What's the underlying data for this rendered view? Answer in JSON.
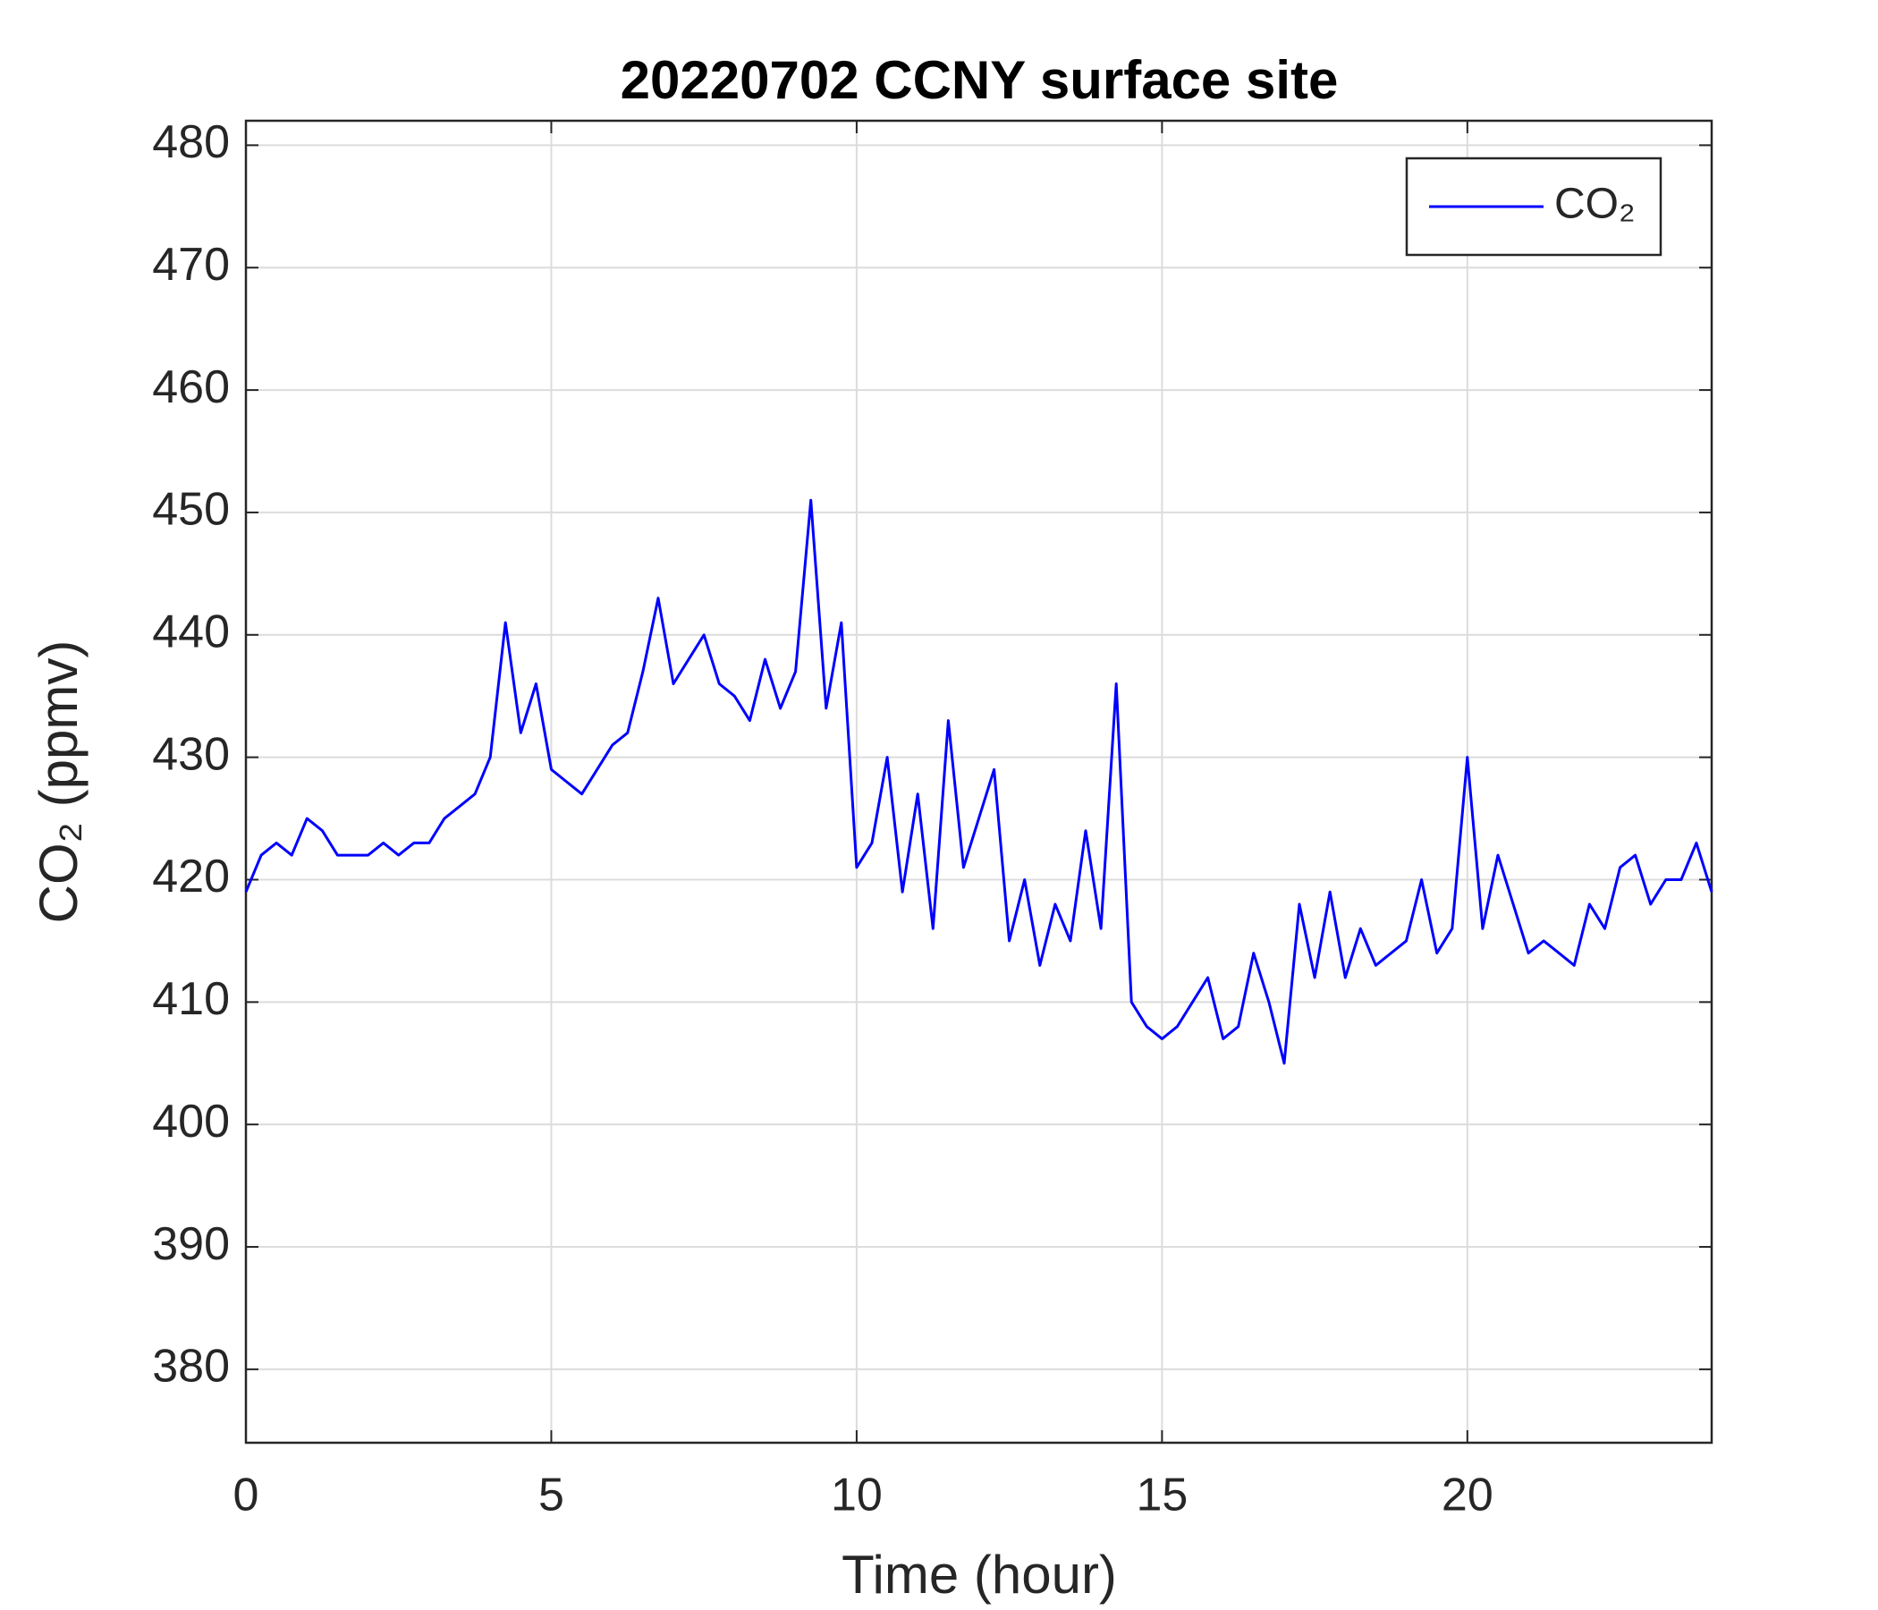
{
  "chart_data": {
    "type": "line",
    "title": "20220702 CCNY surface site",
    "xlabel": "Time (hour)",
    "ylabel": "CO₂ (ppmv)",
    "x": [
      0,
      0.25,
      0.5,
      0.75,
      1,
      1.25,
      1.5,
      1.75,
      2,
      2.25,
      2.5,
      2.75,
      3,
      3.25,
      3.5,
      3.75,
      4,
      4.25,
      4.5,
      4.75,
      5,
      5.25,
      5.5,
      5.75,
      6,
      6.25,
      6.5,
      6.75,
      7,
      7.25,
      7.5,
      7.75,
      8,
      8.25,
      8.5,
      8.75,
      9,
      9.25,
      9.5,
      9.75,
      10,
      10.25,
      10.5,
      10.75,
      11,
      11.25,
      11.5,
      11.75,
      12,
      12.25,
      12.5,
      12.75,
      13,
      13.25,
      13.5,
      13.75,
      14,
      14.25,
      14.5,
      14.75,
      15,
      15.25,
      15.5,
      15.75,
      16,
      16.25,
      16.5,
      16.75,
      17,
      17.25,
      17.5,
      17.75,
      18,
      18.25,
      18.5,
      18.75,
      19,
      19.25,
      19.5,
      19.75,
      20,
      20.25,
      20.5,
      20.75,
      21,
      21.25,
      21.5,
      21.75,
      22,
      22.25,
      22.5,
      22.75,
      23,
      23.25,
      23.5,
      23.75,
      24
    ],
    "series": [
      {
        "name": "CO₂",
        "color": "#0000ff",
        "values": [
          419,
          422,
          423,
          422,
          425,
          424,
          422,
          422,
          422,
          423,
          422,
          423,
          423,
          425,
          426,
          427,
          430,
          441,
          432,
          436,
          429,
          428,
          427,
          429,
          431,
          432,
          437,
          443,
          436,
          438,
          440,
          436,
          435,
          433,
          438,
          434,
          437,
          451,
          434,
          441,
          421,
          423,
          430,
          419,
          427,
          416,
          433,
          421,
          425,
          429,
          415,
          420,
          413,
          418,
          415,
          424,
          416,
          436,
          410,
          408,
          407,
          408,
          410,
          412,
          407,
          408,
          414,
          410,
          405,
          418,
          412,
          419,
          412,
          416,
          413,
          414,
          415,
          420,
          414,
          416,
          430,
          416,
          422,
          418,
          414,
          415,
          414,
          413,
          418,
          416,
          421,
          422,
          418,
          420,
          420,
          423,
          419
        ]
      }
    ],
    "xlim": [
      0,
      24
    ],
    "ylim": [
      374,
      482
    ],
    "xticks": [
      0,
      5,
      10,
      15,
      20
    ],
    "yticks": [
      380,
      390,
      400,
      410,
      420,
      430,
      440,
      450,
      460,
      470,
      480
    ],
    "grid": true,
    "legend": "upper right"
  }
}
